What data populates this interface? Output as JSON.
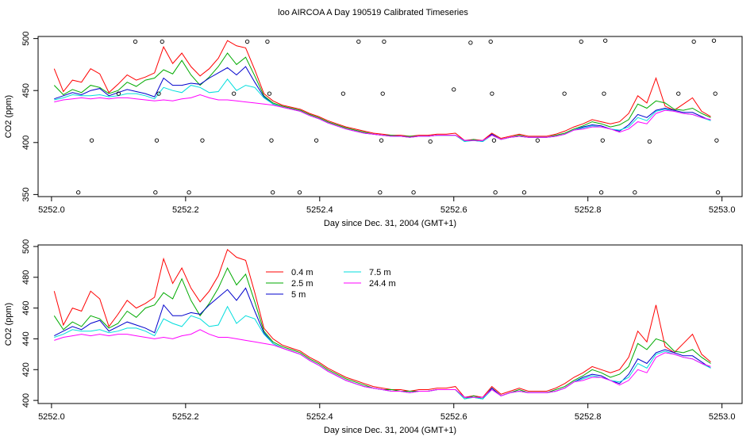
{
  "page_title": "loo AIRCOA A  Day 190519  Calibrated Timeseries",
  "chart_data": [
    {
      "type": "scatter",
      "xlabel": "Day since Dec. 31, 2004 (GMT+1)",
      "ylabel": "CO2 (ppm)",
      "xlim": [
        5251.98,
        5253.03
      ],
      "ylim": [
        348,
        502
      ],
      "xticks": [
        "5252.0",
        "5252.2",
        "5252.4",
        "5252.6",
        "5252.8",
        "5253.0"
      ],
      "yticks": [
        "350",
        "400",
        "450",
        "500"
      ],
      "grid": false,
      "marker_series": {
        "x": [
          5252.04,
          5252.06,
          5252.1,
          5252.125,
          5252.155,
          5252.157,
          5252.16,
          5252.165,
          5252.205,
          5252.225,
          5252.272,
          5252.292,
          5252.322,
          5252.325,
          5252.328,
          5252.33,
          5252.37,
          5252.395,
          5252.435,
          5252.458,
          5252.49,
          5252.492,
          5252.494,
          5252.496,
          5252.54,
          5252.565,
          5252.6,
          5252.625,
          5252.655,
          5252.657,
          5252.66,
          5252.662,
          5252.705,
          5252.725,
          5252.765,
          5252.79,
          5252.82,
          5252.822,
          5252.824,
          5252.826,
          5252.87,
          5252.892,
          5252.935,
          5252.958,
          5252.988,
          5252.99,
          5252.992,
          5252.994
        ],
        "y": [
          352,
          402,
          447,
          497,
          352,
          402,
          447,
          497,
          352,
          402,
          447,
          497,
          497,
          447,
          402,
          352,
          352,
          402,
          447,
          497,
          352,
          402,
          447,
          497,
          352,
          401,
          451,
          496,
          497,
          447,
          402,
          352,
          352,
          402,
          447,
          497,
          352,
          402,
          447,
          498,
          352,
          401,
          447,
          497,
          498,
          447,
          402,
          352
        ]
      },
      "series": [
        {
          "name": "0.4 m",
          "color": "#ff0000",
          "values": [
            471,
            449,
            460,
            458,
            471,
            466,
            448,
            456,
            465,
            460,
            463,
            467,
            492,
            476,
            486,
            473,
            464,
            471,
            481,
            498,
            493,
            491,
            470,
            447,
            440,
            436,
            434,
            432,
            428,
            425,
            421,
            418,
            415,
            413,
            411,
            409,
            408,
            407,
            407,
            406,
            407,
            407,
            408,
            408,
            409,
            402,
            403,
            402,
            409,
            404,
            406,
            408,
            406,
            406,
            406,
            408,
            411,
            415,
            418,
            422,
            420,
            418,
            420,
            428,
            445,
            438,
            462,
            435,
            431,
            437,
            443,
            430,
            425
          ]
        },
        {
          "name": "2.5 m",
          "color": "#00aa00",
          "values": [
            455,
            446,
            451,
            448,
            455,
            453,
            447,
            450,
            458,
            454,
            460,
            462,
            470,
            466,
            479,
            465,
            455,
            463,
            473,
            486,
            475,
            482,
            464,
            445,
            438,
            435,
            433,
            431,
            427,
            424,
            420,
            417,
            414,
            412,
            410,
            408,
            407,
            407,
            406,
            406,
            406,
            406,
            407,
            407,
            407,
            401,
            403,
            401,
            408,
            403,
            405,
            407,
            405,
            405,
            405,
            407,
            409,
            413,
            416,
            420,
            418,
            415,
            417,
            422,
            437,
            433,
            440,
            438,
            432,
            431,
            433,
            428,
            424
          ]
        },
        {
          "name": "5 m",
          "color": "#0000cc",
          "values": [
            442,
            445,
            448,
            446,
            450,
            452,
            445,
            448,
            451,
            449,
            447,
            444,
            462,
            455,
            455,
            457,
            456,
            462,
            467,
            472,
            465,
            473,
            458,
            444,
            437,
            434,
            432,
            430,
            426,
            423,
            419,
            416,
            413,
            411,
            409,
            408,
            407,
            406,
            406,
            405,
            406,
            406,
            407,
            407,
            407,
            402,
            402,
            401,
            408,
            403,
            405,
            406,
            405,
            405,
            405,
            406,
            408,
            412,
            415,
            417,
            416,
            413,
            411,
            417,
            427,
            424,
            431,
            433,
            431,
            429,
            429,
            425,
            421
          ]
        },
        {
          "name": "7.5 m",
          "color": "#00dddd",
          "values": [
            441,
            443,
            446,
            445,
            445,
            446,
            444,
            445,
            447,
            447,
            445,
            442,
            453,
            450,
            448,
            455,
            453,
            448,
            449,
            461,
            450,
            455,
            453,
            443,
            437,
            434,
            432,
            430,
            426,
            423,
            419,
            416,
            413,
            411,
            409,
            408,
            407,
            406,
            406,
            405,
            406,
            406,
            407,
            407,
            407,
            401,
            402,
            401,
            407,
            403,
            405,
            406,
            405,
            405,
            405,
            406,
            408,
            412,
            414,
            416,
            415,
            413,
            412,
            415,
            424,
            421,
            430,
            432,
            430,
            428,
            427,
            424,
            421
          ]
        },
        {
          "name": "24.4 m",
          "color": "#ff00ff",
          "values": [
            439,
            441,
            442,
            443,
            442,
            443,
            442,
            443,
            443,
            442,
            441,
            440,
            441,
            440,
            442,
            443,
            446,
            443,
            441,
            441,
            440,
            439,
            438,
            437,
            436,
            434,
            432,
            430,
            426,
            423,
            419,
            416,
            413,
            411,
            409,
            408,
            407,
            406,
            406,
            405,
            406,
            406,
            407,
            407,
            407,
            402,
            402,
            402,
            407,
            403,
            405,
            406,
            405,
            405,
            405,
            406,
            408,
            412,
            413,
            415,
            415,
            413,
            410,
            413,
            420,
            418,
            428,
            431,
            430,
            428,
            427,
            424,
            422
          ]
        }
      ]
    },
    {
      "type": "line",
      "xlabel": "Day since Dec. 31, 2004 (GMT+1)",
      "ylabel": "CO2 (ppm)",
      "xlim": [
        5251.98,
        5253.03
      ],
      "ylim": [
        398,
        501
      ],
      "xticks": [
        "5252.0",
        "5252.2",
        "5252.4",
        "5252.6",
        "5252.8",
        "5253.0"
      ],
      "yticks": [
        "400",
        "420",
        "440",
        "460",
        "480",
        "500"
      ],
      "grid": false,
      "legend": {
        "placement": "top-left",
        "columns": 2
      },
      "x_start": 5252.004,
      "x_step": 0.0136,
      "series": [
        {
          "name": "0.4 m",
          "color": "#ff0000",
          "values": [
            471,
            449,
            460,
            458,
            471,
            466,
            448,
            456,
            465,
            460,
            463,
            467,
            492,
            476,
            486,
            473,
            464,
            471,
            481,
            498,
            493,
            491,
            470,
            447,
            440,
            436,
            434,
            432,
            428,
            425,
            421,
            418,
            415,
            413,
            411,
            409,
            408,
            407,
            407,
            406,
            407,
            407,
            408,
            408,
            409,
            402,
            403,
            402,
            409,
            404,
            406,
            408,
            406,
            406,
            406,
            408,
            411,
            415,
            418,
            422,
            420,
            418,
            420,
            428,
            445,
            438,
            462,
            435,
            431,
            437,
            443,
            430,
            425
          ]
        },
        {
          "name": "2.5 m",
          "color": "#00aa00",
          "values": [
            455,
            446,
            451,
            448,
            455,
            453,
            447,
            450,
            458,
            454,
            460,
            462,
            470,
            466,
            479,
            465,
            455,
            463,
            473,
            486,
            475,
            482,
            464,
            445,
            438,
            435,
            433,
            431,
            427,
            424,
            420,
            417,
            414,
            412,
            410,
            408,
            407,
            407,
            406,
            406,
            406,
            406,
            407,
            407,
            407,
            401,
            403,
            401,
            408,
            403,
            405,
            407,
            405,
            405,
            405,
            407,
            409,
            413,
            416,
            420,
            418,
            415,
            417,
            422,
            437,
            433,
            440,
            438,
            432,
            431,
            433,
            428,
            424
          ]
        },
        {
          "name": "5 m",
          "color": "#0000cc",
          "values": [
            442,
            445,
            448,
            446,
            450,
            452,
            445,
            448,
            451,
            449,
            447,
            444,
            462,
            455,
            455,
            457,
            456,
            462,
            467,
            472,
            465,
            473,
            458,
            444,
            437,
            434,
            432,
            430,
            426,
            423,
            419,
            416,
            413,
            411,
            409,
            408,
            407,
            406,
            406,
            405,
            406,
            406,
            407,
            407,
            407,
            402,
            402,
            401,
            408,
            403,
            405,
            406,
            405,
            405,
            405,
            406,
            408,
            412,
            415,
            417,
            416,
            413,
            411,
            417,
            427,
            424,
            431,
            433,
            431,
            429,
            429,
            425,
            421
          ]
        },
        {
          "name": "7.5 m",
          "color": "#00dddd",
          "values": [
            441,
            443,
            446,
            445,
            445,
            446,
            444,
            445,
            447,
            447,
            445,
            442,
            453,
            450,
            448,
            455,
            453,
            448,
            449,
            461,
            450,
            455,
            453,
            443,
            437,
            434,
            432,
            430,
            426,
            423,
            419,
            416,
            413,
            411,
            409,
            408,
            407,
            406,
            406,
            405,
            406,
            406,
            407,
            407,
            407,
            401,
            402,
            401,
            407,
            403,
            405,
            406,
            405,
            405,
            405,
            406,
            408,
            412,
            414,
            416,
            415,
            413,
            412,
            415,
            424,
            421,
            430,
            432,
            430,
            428,
            427,
            424,
            421
          ]
        },
        {
          "name": "24.4 m",
          "color": "#ff00ff",
          "values": [
            439,
            441,
            442,
            443,
            442,
            443,
            442,
            443,
            443,
            442,
            441,
            440,
            441,
            440,
            442,
            443,
            446,
            443,
            441,
            441,
            440,
            439,
            438,
            437,
            436,
            434,
            432,
            430,
            426,
            423,
            419,
            416,
            413,
            411,
            409,
            408,
            407,
            406,
            406,
            405,
            406,
            406,
            407,
            407,
            407,
            402,
            402,
            402,
            407,
            403,
            405,
            406,
            405,
            405,
            405,
            406,
            408,
            412,
            413,
            415,
            415,
            413,
            410,
            413,
            420,
            418,
            428,
            431,
            430,
            428,
            427,
            424,
            422
          ]
        }
      ]
    }
  ]
}
